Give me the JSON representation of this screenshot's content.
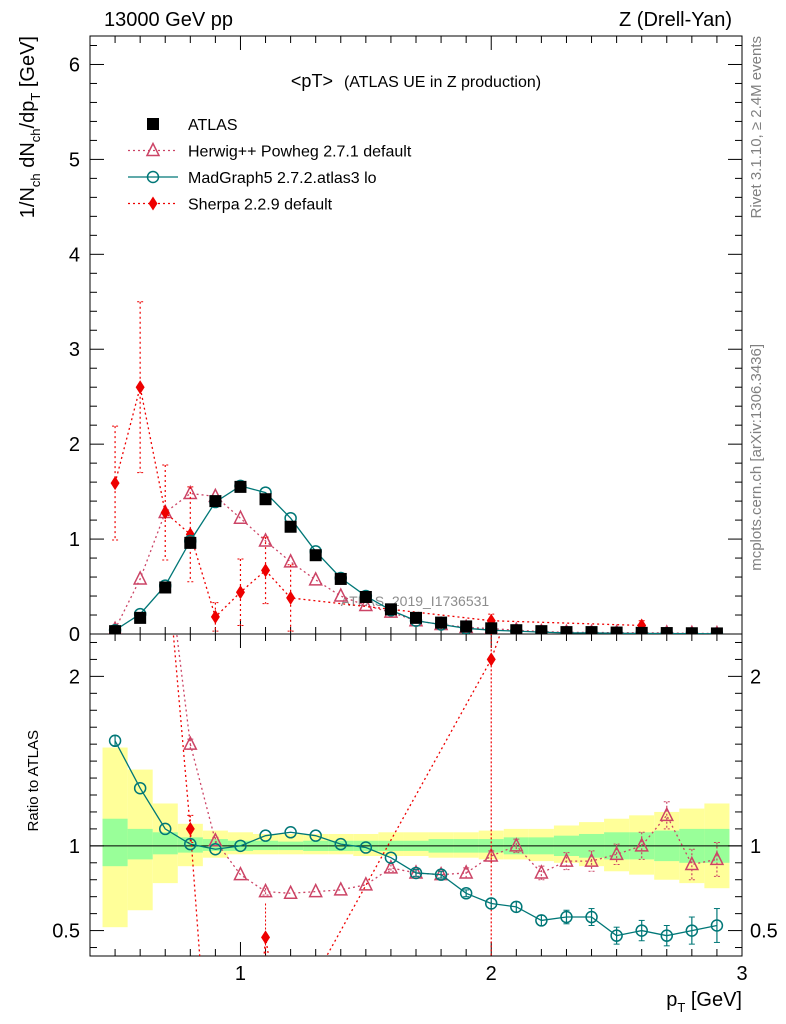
{
  "chart_data": {
    "type": "line",
    "header_left": "13000 GeV pp",
    "header_right": "Z (Drell-Yan)",
    "title": "<pT>",
    "subtitle": "(ATLAS UE in Z production)",
    "ylabel_main": {
      "base": "1/N",
      "s1": "ch",
      "mid": " dN",
      "s2": "ch",
      "mid2": "/dp",
      "s3": "T",
      "end": " [GeV]"
    },
    "ylabel_ratio": "Ratio to ATLAS",
    "xlabel": {
      "base": "p",
      "sub": "T",
      "unit": " [GeV]"
    },
    "watermark": "ATLAS_2019_I1736531",
    "side_text_top": "Rivet 3.1.10, ≥ 2.4M events",
    "side_text_bottom": "mcplots.cern.ch [arXiv:1306.3436]",
    "xlim": [
      0.4,
      3.0
    ],
    "ylim_main": [
      0,
      6.3
    ],
    "ylim_ratio": [
      0.35,
      2.25
    ],
    "x_ticks": [
      {
        "v": 1,
        "label": "1"
      },
      {
        "v": 2,
        "label": "2"
      },
      {
        "v": 3,
        "label": "3"
      }
    ],
    "y_ticks_main": [
      {
        "v": 0,
        "label": "0"
      },
      {
        "v": 1,
        "label": "1"
      },
      {
        "v": 2,
        "label": "2"
      },
      {
        "v": 3,
        "label": "3"
      },
      {
        "v": 4,
        "label": "4"
      },
      {
        "v": 5,
        "label": "5"
      },
      {
        "v": 6,
        "label": "6"
      }
    ],
    "y_ticks_ratio": [
      {
        "v": 0.5,
        "label": "0.5"
      },
      {
        "v": 1,
        "label": "1"
      },
      {
        "v": 2,
        "label": "2"
      }
    ],
    "bin_edges": [
      0.45,
      0.55,
      0.65,
      0.75,
      0.85,
      0.95,
      1.05,
      1.15,
      1.25,
      1.35,
      1.45,
      1.55,
      1.65,
      1.75,
      1.85,
      1.95,
      2.05,
      2.15,
      2.25,
      2.35,
      2.45,
      2.55,
      2.65,
      2.75,
      2.85,
      2.95
    ],
    "band_inner": [
      [
        0.88,
        1.16
      ],
      [
        0.92,
        1.1
      ],
      [
        0.95,
        1.08
      ],
      [
        0.96,
        1.05
      ],
      [
        0.97,
        1.04
      ],
      [
        0.97,
        1.03
      ],
      [
        0.975,
        1.03
      ],
      [
        0.975,
        1.025
      ],
      [
        0.97,
        1.03
      ],
      [
        0.97,
        1.03
      ],
      [
        0.97,
        1.03
      ],
      [
        0.97,
        1.03
      ],
      [
        0.97,
        1.03
      ],
      [
        0.96,
        1.04
      ],
      [
        0.96,
        1.04
      ],
      [
        0.96,
        1.04
      ],
      [
        0.95,
        1.05
      ],
      [
        0.95,
        1.05
      ],
      [
        0.94,
        1.06
      ],
      [
        0.93,
        1.07
      ],
      [
        0.92,
        1.08
      ],
      [
        0.92,
        1.08
      ],
      [
        0.91,
        1.09
      ],
      [
        0.9,
        1.1
      ],
      [
        0.9,
        1.1
      ]
    ],
    "band_outer": [
      [
        0.52,
        1.58
      ],
      [
        0.62,
        1.45
      ],
      [
        0.78,
        1.25
      ],
      [
        0.88,
        1.13
      ],
      [
        0.93,
        1.09
      ],
      [
        0.95,
        1.08
      ],
      [
        0.95,
        1.07
      ],
      [
        0.95,
        1.07
      ],
      [
        0.95,
        1.07
      ],
      [
        0.95,
        1.07
      ],
      [
        0.94,
        1.07
      ],
      [
        0.94,
        1.08
      ],
      [
        0.94,
        1.08
      ],
      [
        0.93,
        1.08
      ],
      [
        0.93,
        1.08
      ],
      [
        0.92,
        1.09
      ],
      [
        0.92,
        1.1
      ],
      [
        0.91,
        1.1
      ],
      [
        0.9,
        1.12
      ],
      [
        0.88,
        1.14
      ],
      [
        0.85,
        1.16
      ],
      [
        0.83,
        1.18
      ],
      [
        0.8,
        1.2
      ],
      [
        0.78,
        1.22
      ],
      [
        0.75,
        1.25
      ]
    ],
    "x": [
      0.5,
      0.6,
      0.7,
      0.8,
      0.9,
      1.0,
      1.1,
      1.2,
      1.3,
      1.4,
      1.5,
      1.6,
      1.7,
      1.8,
      1.9,
      2.0,
      2.1,
      2.2,
      2.3,
      2.4,
      2.5,
      2.6,
      2.7,
      2.8,
      2.9
    ],
    "series": [
      {
        "name": "ATLAS",
        "color": "#000000",
        "marker": "square",
        "values": [
          0.03,
          0.17,
          0.49,
          0.96,
          1.4,
          1.55,
          1.42,
          1.13,
          0.83,
          0.58,
          0.39,
          0.26,
          0.17,
          0.12,
          0.08,
          0.06,
          0.04,
          0.03,
          0.02,
          0.02,
          0.015,
          0.012,
          0.01,
          0.008,
          0.006
        ]
      },
      {
        "name": "Herwig++ Powheg 2.7.1 default",
        "color": "#cc4466",
        "marker": "triangle",
        "dash": "2,3",
        "values": [
          0.05,
          0.58,
          1.28,
          1.48,
          1.45,
          1.22,
          0.98,
          0.76,
          0.57,
          0.4,
          0.3,
          0.23,
          0.14,
          0.1,
          0.07,
          0.056,
          0.04,
          0.025,
          0.018,
          0.016,
          0.014,
          0.012,
          0.011,
          0.007,
          0.005
        ],
        "ratio": [
          null,
          null,
          null,
          1.6,
          1.03,
          0.83,
          0.73,
          0.72,
          0.73,
          0.74,
          0.77,
          0.87,
          0.84,
          0.83,
          0.84,
          0.94,
          1.0,
          0.84,
          0.91,
          0.91,
          0.95,
          1.0,
          1.18,
          0.89,
          0.92
        ],
        "ratio_err": [
          0,
          0,
          0,
          0.03,
          0.02,
          0.01,
          0.02,
          0.01,
          0.01,
          0.01,
          0.01,
          0.02,
          0.02,
          0.02,
          0.03,
          0.03,
          0.04,
          0.04,
          0.05,
          0.06,
          0.06,
          0.08,
          0.08,
          0.09,
          0.1
        ]
      },
      {
        "name": "MadGraph5 2.7.2.atlas3 lo",
        "color": "#007777",
        "marker": "circle",
        "values": [
          0.04,
          0.21,
          0.51,
          0.98,
          1.39,
          1.56,
          1.49,
          1.22,
          0.87,
          0.59,
          0.4,
          0.25,
          0.14,
          0.1,
          0.06,
          0.04,
          0.03,
          0.02,
          0.012,
          0.011,
          0.008,
          0.006,
          0.005,
          0.004,
          0.003
        ],
        "ratio": [
          1.62,
          1.34,
          1.1,
          1.01,
          0.98,
          1.0,
          1.06,
          1.08,
          1.06,
          1.01,
          0.99,
          0.93,
          0.84,
          0.83,
          0.72,
          0.66,
          0.64,
          0.56,
          0.58,
          0.58,
          0.47,
          0.5,
          0.47,
          0.5,
          0.53
        ],
        "ratio_err": [
          0.03,
          0.01,
          0.01,
          0.01,
          0.01,
          0.01,
          0.01,
          0.01,
          0.01,
          0.01,
          0.01,
          0.01,
          0.02,
          0.02,
          0.02,
          0.03,
          0.03,
          0.03,
          0.04,
          0.05,
          0.05,
          0.06,
          0.06,
          0.08,
          0.1
        ]
      },
      {
        "name": "Sherpa 2.2.9 default",
        "color": "#ee0000",
        "marker": "diamond",
        "dash": "2,3",
        "values": [
          1.59,
          2.6,
          1.28,
          1.05,
          0.18,
          0.44,
          0.67,
          0.38,
          null,
          null,
          null,
          null,
          null,
          null,
          null,
          0.14,
          null,
          null,
          null,
          null,
          null,
          0.09,
          null,
          null,
          null
        ],
        "errors": [
          0.6,
          0.9,
          0.5,
          0.5,
          0.15,
          0.35,
          0.35,
          0.35,
          null,
          null,
          null,
          null,
          null,
          null,
          null,
          0.07,
          null,
          null,
          null,
          null,
          null,
          0.05,
          null,
          null,
          null
        ],
        "ratio": [
          null,
          null,
          null,
          1.1,
          null,
          null,
          null,
          null,
          null,
          null,
          null,
          null,
          null,
          null,
          null,
          2.1,
          null,
          null,
          null,
          null,
          null,
          null,
          null,
          null,
          null
        ],
        "ratio_err": [
          0,
          0,
          0,
          0.08,
          0,
          0,
          0,
          0,
          0,
          0,
          0,
          0,
          0,
          0,
          0,
          1.9,
          0,
          0,
          0,
          0,
          0,
          0,
          0,
          0,
          0
        ],
        "ratio_extra": {
          "x": 1.1,
          "y": 0.46,
          "err": 0.2
        }
      }
    ]
  }
}
